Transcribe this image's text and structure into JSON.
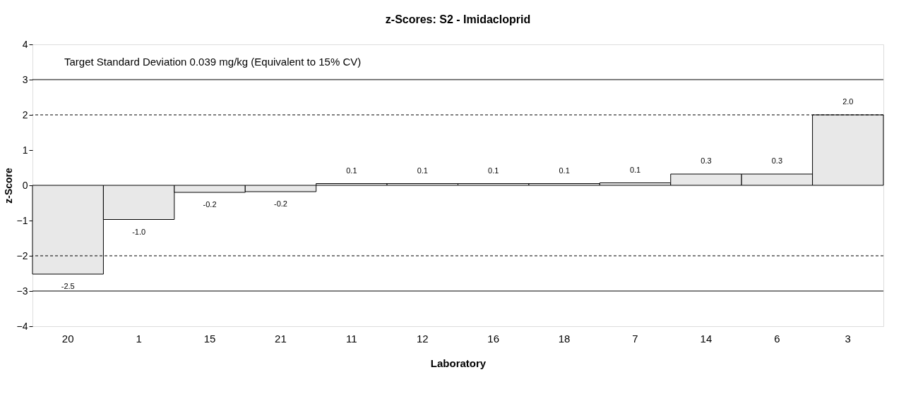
{
  "chart_data": {
    "type": "bar",
    "title": "z-Scores: S2 - Imidacloprid",
    "xlabel": "Laboratory",
    "ylabel": "z-Score",
    "categories": [
      "20",
      "1",
      "15",
      "21",
      "11",
      "12",
      "16",
      "18",
      "7",
      "14",
      "6",
      "3"
    ],
    "values": [
      -2.52,
      -0.97,
      -0.2,
      -0.18,
      0.05,
      0.05,
      0.05,
      0.05,
      0.07,
      0.32,
      0.32,
      2.0
    ],
    "value_labels": [
      "-2.5",
      "-1.0",
      "-0.2",
      "-0.2",
      "0.1",
      "0.1",
      "0.1",
      "0.1",
      "0.1",
      "0.3",
      "0.3",
      "2.0"
    ],
    "color": "#e8e8e8",
    "ylim": [
      -4,
      4
    ],
    "yticks": [
      -4,
      -3,
      -2,
      -1,
      0,
      1,
      2,
      3,
      4
    ],
    "grid": false,
    "ref_lines": [
      {
        "axis": "y",
        "value": 3,
        "label": null,
        "color": "#000000",
        "line_style": "solid"
      },
      {
        "axis": "y",
        "value": 2,
        "label": null,
        "color": "#000000",
        "line_style": "dashed"
      },
      {
        "axis": "y",
        "value": -2,
        "label": null,
        "color": "#000000",
        "line_style": "dashed"
      },
      {
        "axis": "y",
        "value": -3,
        "label": null,
        "color": "#000000",
        "line_style": "solid"
      }
    ],
    "annotations": [
      "Target Standard Deviation 0.039 mg/kg  (Equivalent to 15% CV)"
    ]
  }
}
